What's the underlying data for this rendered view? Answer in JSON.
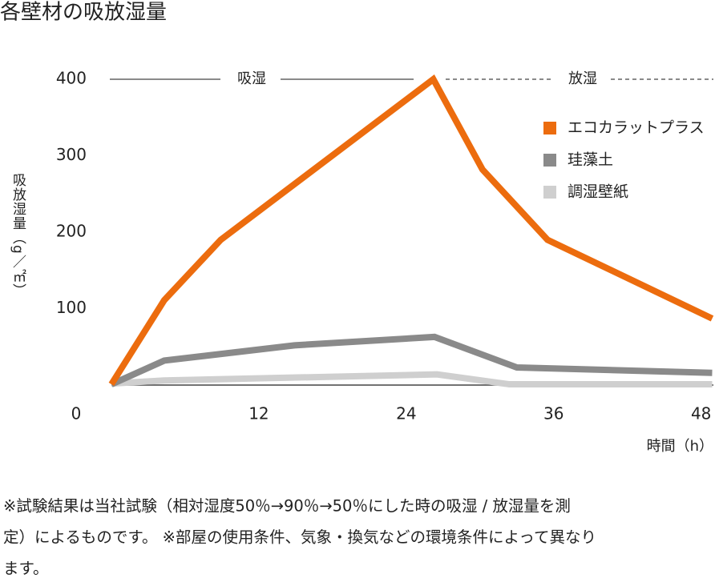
{
  "chart_data": {
    "type": "line",
    "title": "各壁材の吸放湿量",
    "ylabel": "吸放湿量（g／㎡）",
    "xlabel": "時間（h）",
    "xlim": [
      0,
      49
    ],
    "xticks": [
      0,
      12,
      24,
      36,
      48
    ],
    "ylim": [
      0,
      400
    ],
    "yticks": [
      100,
      200,
      300,
      400
    ],
    "annotations": [
      "吸湿",
      "放湿"
    ],
    "series": [
      {
        "name": "エコカラットプラス",
        "color": "#ec6c0e",
        "x": [
          0,
          4.3,
          8.9,
          26.2,
          30.2,
          35.5,
          48.9
        ],
        "values": [
          1,
          111,
          190,
          400,
          282,
          190,
          87
        ]
      },
      {
        "name": "珪藻土",
        "color": "#8a8a8a",
        "x": [
          0,
          4.3,
          14.9,
          26.3,
          33,
          48.9
        ],
        "values": [
          1,
          32,
          52,
          63,
          23,
          16
        ]
      },
      {
        "name": "調湿壁紙",
        "color": "#cfcfcf",
        "x": [
          0,
          4.3,
          26.5,
          32.4,
          48.9
        ],
        "values": [
          2,
          6,
          14,
          1,
          1
        ]
      }
    ],
    "legend": "upper right",
    "notes": [
      "※試験結果は当社試験（相対湿度50％→90％→50％にした時の吸湿 / 放湿量を測",
      "定）によるものです。 ※部屋の使用条件、気象・換気などの環境条件によって異なり",
      "ます。"
    ]
  }
}
